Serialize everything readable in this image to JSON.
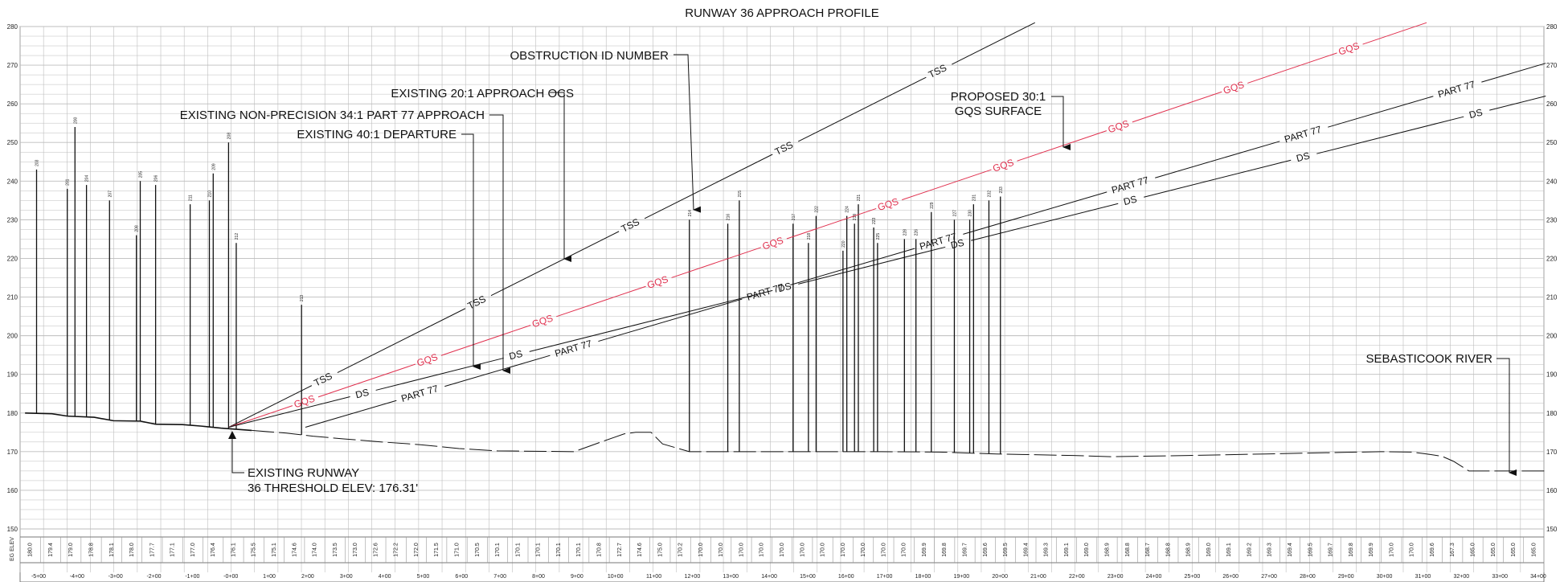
{
  "title": "RUNWAY 36 APPROACH PROFILE",
  "colors": {
    "grid": "#bdbdbd",
    "line": "#111111",
    "gqs": "#e0304e"
  },
  "axis": {
    "elev_range": [
      150,
      280
    ],
    "elev_ticks": [
      "150",
      "160",
      "170",
      "180",
      "190",
      "200",
      "210",
      "220",
      "230",
      "240",
      "250",
      "260",
      "270",
      "280"
    ],
    "station_range": [
      -5,
      34
    ],
    "eg_elev_label": "EG ELEV"
  },
  "stations": [
    "-5+00",
    "-4+00",
    "-3+00",
    "-2+00",
    "-1+00",
    "-0+00",
    "1+00",
    "2+00",
    "3+00",
    "4+00",
    "5+00",
    "6+00",
    "7+00",
    "8+00",
    "9+00",
    "10+00",
    "11+00",
    "12+00",
    "13+00",
    "14+00",
    "15+00",
    "16+00",
    "17+00",
    "18+00",
    "19+00",
    "20+00",
    "21+00",
    "22+00",
    "23+00",
    "24+00",
    "25+00",
    "26+00",
    "27+00",
    "28+00",
    "29+00",
    "30+00",
    "31+00",
    "32+00",
    "33+00",
    "34+00"
  ],
  "eg_elevations": [
    "180.0",
    "179.4",
    "179.0",
    "178.8",
    "178.1",
    "178.0",
    "177.7",
    "177.1",
    "177.0",
    "176.4",
    "176.1",
    "175.5",
    "175.1",
    "174.6",
    "174.0",
    "173.5",
    "173.0",
    "172.6",
    "172.2",
    "172.0",
    "171.5",
    "171.0",
    "170.5",
    "170.1",
    "170.1",
    "170.1",
    "170.1",
    "170.1",
    "170.8",
    "172.7",
    "174.6",
    "175.0",
    "170.2",
    "170.0",
    "170.0",
    "170.0",
    "170.0",
    "170.0",
    "170.0",
    "170.0",
    "170.0",
    "170.0",
    "170.0",
    "170.0",
    "169.9",
    "169.8",
    "169.7",
    "169.6",
    "169.5",
    "169.4",
    "169.3",
    "169.1",
    "169.0",
    "168.9",
    "168.8",
    "168.7",
    "168.8",
    "168.9",
    "169.0",
    "169.1",
    "169.2",
    "169.3",
    "169.4",
    "169.5",
    "169.7",
    "169.8",
    "169.9",
    "170.0",
    "170.0",
    "169.6",
    "167.3",
    "165.0",
    "165.0",
    "165.0",
    "165.0"
  ],
  "ground": [
    [
      -5.3,
      180
    ],
    [
      -4.6,
      179.8
    ],
    [
      -4.2,
      179.2
    ],
    [
      -3.5,
      178.9
    ],
    [
      -3.0,
      178.0
    ],
    [
      -2.3,
      177.9
    ],
    [
      -1.9,
      177.1
    ],
    [
      -1.2,
      177.0
    ],
    [
      -0.7,
      176.6
    ],
    [
      -0.2,
      176.1
    ],
    [
      0.6,
      175.5
    ],
    [
      1.5,
      174.8
    ],
    [
      2.2,
      174.0
    ],
    [
      3.0,
      173.3
    ],
    [
      4.0,
      172.5
    ],
    [
      5.0,
      171.8
    ],
    [
      6.0,
      170.8
    ],
    [
      7.0,
      170.2
    ],
    [
      8.0,
      170.1
    ],
    [
      9.0,
      170.0
    ],
    [
      9.7,
      172.5
    ],
    [
      10.3,
      174.6
    ],
    [
      10.6,
      175.0
    ],
    [
      11.0,
      175.0
    ],
    [
      11.3,
      172.0
    ],
    [
      12.0,
      170.0
    ],
    [
      15.0,
      170.0
    ],
    [
      17.0,
      170.0
    ],
    [
      18.5,
      169.9
    ],
    [
      20.0,
      169.4
    ],
    [
      22.0,
      169.0
    ],
    [
      23.0,
      168.7
    ],
    [
      25.0,
      169.0
    ],
    [
      27.0,
      169.4
    ],
    [
      29.0,
      169.8
    ],
    [
      30.0,
      170.0
    ],
    [
      30.8,
      169.9
    ],
    [
      31.2,
      169.4
    ],
    [
      31.6,
      168.8
    ],
    [
      31.9,
      167.5
    ],
    [
      32.3,
      165.0
    ],
    [
      34.3,
      165.0
    ]
  ],
  "obstructions": [
    {
      "id": "203",
      "sta": -5.0,
      "top": 243
    },
    {
      "id": "201",
      "sta": -4.2,
      "top": 238
    },
    {
      "id": "200",
      "sta": -4.0,
      "top": 254
    },
    {
      "id": "204",
      "sta": -3.7,
      "top": 239
    },
    {
      "id": "207",
      "sta": -3.1,
      "top": 235
    },
    {
      "id": "208",
      "sta": -2.4,
      "top": 226
    },
    {
      "id": "205",
      "sta": -2.3,
      "top": 240
    },
    {
      "id": "206",
      "sta": -1.9,
      "top": 239
    },
    {
      "id": "211",
      "sta": -1.0,
      "top": 234
    },
    {
      "id": "210",
      "sta": -0.5,
      "top": 235
    },
    {
      "id": "209",
      "sta": -0.4,
      "top": 242
    },
    {
      "id": "208",
      "sta": 0.0,
      "top": 250
    },
    {
      "id": "212",
      "sta": 0.2,
      "top": 224
    },
    {
      "id": "213",
      "sta": 1.9,
      "top": 208
    },
    {
      "id": "214",
      "sta": 12.0,
      "top": 230
    },
    {
      "id": "216",
      "sta": 13.0,
      "top": 229
    },
    {
      "id": "215",
      "sta": 13.3,
      "top": 235
    },
    {
      "id": "217",
      "sta": 14.7,
      "top": 229
    },
    {
      "id": "218",
      "sta": 15.1,
      "top": 224
    },
    {
      "id": "222",
      "sta": 15.3,
      "top": 231
    },
    {
      "id": "220",
      "sta": 16.0,
      "top": 222
    },
    {
      "id": "224",
      "sta": 16.1,
      "top": 231
    },
    {
      "id": "219",
      "sta": 16.3,
      "top": 229
    },
    {
      "id": "221",
      "sta": 16.4,
      "top": 234
    },
    {
      "id": "223",
      "sta": 16.8,
      "top": 228
    },
    {
      "id": "225",
      "sta": 16.9,
      "top": 224
    },
    {
      "id": "228",
      "sta": 17.6,
      "top": 225
    },
    {
      "id": "226",
      "sta": 17.9,
      "top": 225
    },
    {
      "id": "229",
      "sta": 18.3,
      "top": 232
    },
    {
      "id": "227",
      "sta": 18.9,
      "top": 230
    },
    {
      "id": "230",
      "sta": 19.3,
      "top": 230
    },
    {
      "id": "231",
      "sta": 19.4,
      "top": 234
    },
    {
      "id": "232",
      "sta": 19.8,
      "top": 235
    },
    {
      "id": "233",
      "sta": 20.1,
      "top": 236
    }
  ],
  "surfaces": [
    {
      "key": "tss",
      "style": "black",
      "x1": 0,
      "y1": 176.31,
      "x2": 21.0,
      "y2": 281,
      "labels": [
        {
          "text": "TSS",
          "sta": 2.5
        },
        {
          "text": "TSS",
          "sta": 6.5
        },
        {
          "text": "TSS",
          "sta": 10.5
        },
        {
          "text": "TSS",
          "sta": 14.5
        },
        {
          "text": "TSS",
          "sta": 18.5
        }
      ]
    },
    {
      "key": "gqs",
      "style": "red",
      "x1": 0,
      "y1": 176.31,
      "x2": 31.2,
      "y2": 281,
      "labels": [
        {
          "text": "GQS",
          "sta": 2.0
        },
        {
          "text": "GQS",
          "sta": 5.2
        },
        {
          "text": "GQS",
          "sta": 8.2
        },
        {
          "text": "GQS",
          "sta": 11.2
        },
        {
          "text": "GQS",
          "sta": 14.2
        },
        {
          "text": "GQS",
          "sta": 17.2
        },
        {
          "text": "GQS",
          "sta": 20.2
        },
        {
          "text": "GQS",
          "sta": 23.2
        },
        {
          "text": "GQS",
          "sta": 26.2
        },
        {
          "text": "GQS",
          "sta": 29.2
        }
      ]
    },
    {
      "key": "ds-a",
      "style": "black",
      "x1": 0,
      "y1": 176.31,
      "x2": 34.3,
      "y2": 262,
      "labels": [
        {
          "text": "DS",
          "sta": 3.5
        },
        {
          "text": "DS",
          "sta": 7.5
        },
        {
          "text": "DS",
          "sta": 14.5
        },
        {
          "text": "DS",
          "sta": 19.0
        },
        {
          "text": "DS",
          "sta": 23.5
        },
        {
          "text": "DS",
          "sta": 28.0
        },
        {
          "text": "DS",
          "sta": 32.5
        }
      ]
    },
    {
      "key": "p77-a",
      "style": "black",
      "x1": 2.0,
      "y1": 176.31,
      "x2": 34.3,
      "y2": 270.5,
      "labels": [
        {
          "text": "PART 77",
          "sta": 5.0
        },
        {
          "text": "PART 77",
          "sta": 9.0
        },
        {
          "text": "PART 77",
          "sta": 14.0
        },
        {
          "text": "PART 77",
          "sta": 18.5
        },
        {
          "text": "PART 77",
          "sta": 23.5
        },
        {
          "text": "PART 77",
          "sta": 28.0
        },
        {
          "text": "PART 77",
          "sta": 32.0
        }
      ]
    }
  ],
  "callouts": [
    {
      "text": "OBSTRUCTION ID NUMBER",
      "lines": 1
    },
    {
      "text": "EXISTING 20:1 APPROACH OCS",
      "lines": 1
    },
    {
      "text": "EXISTING NON-PRECISION 34:1 PART 77 APPROACH",
      "lines": 1
    },
    {
      "text": "EXISTING 40:1 DEPARTURE",
      "lines": 1
    },
    {
      "line1": "PROPOSED 30:1",
      "line2": "GQS SURFACE"
    },
    {
      "text": "SEBASTICOOK RIVER"
    },
    {
      "line1": "EXISTING RUNWAY",
      "line2": "36 THRESHOLD ELEV: 176.31'"
    }
  ]
}
